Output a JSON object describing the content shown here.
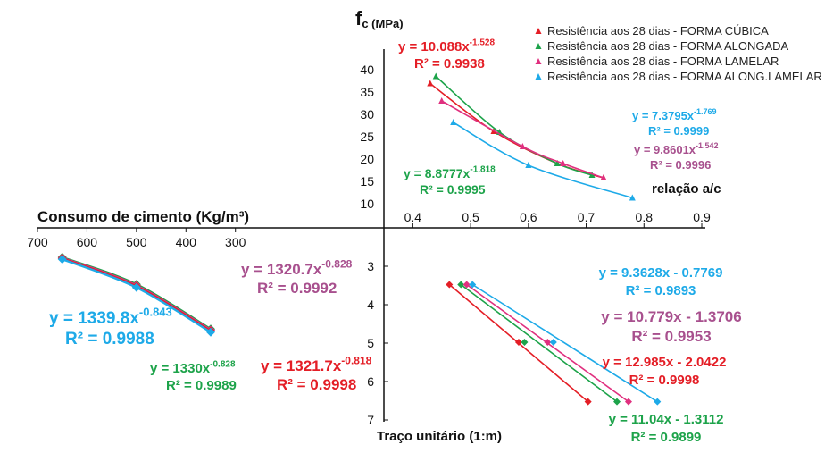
{
  "chart_data": {
    "type": "quadrant-scatter",
    "colors": {
      "cubica": "#e41e26",
      "alongada": "#1da34a",
      "lamelar": "#e0307f",
      "along_lamelar": "#1eaae8",
      "lamelar_equation": "#a8508e"
    },
    "legend": {
      "placement": "top-right",
      "entries": [
        {
          "label": "Resistência aos 28 dias - FORMA CÚBICA",
          "color_key": "cubica"
        },
        {
          "label": "Resistência aos 28 dias - FORMA ALONGADA",
          "color_key": "alongada"
        },
        {
          "label": "Resistência aos 28 dias - FORMA LAMELAR",
          "color_key": "lamelar"
        },
        {
          "label": "Resistência aos 28 dias - FORMA ALONG.LAMELAR",
          "color_key": "along_lamelar"
        }
      ]
    },
    "axes": {
      "fc_label": "f",
      "fc_sub": "c (MPa)",
      "ac_label": "relação a/c",
      "cement_label": "Consumo de cimento (Kg/m³)",
      "traco_label": "Traço unitário (1:m)",
      "fc_ticks": [
        "40",
        "35",
        "30",
        "25",
        "20",
        "15",
        "10"
      ],
      "ac_ticks": [
        "0.4",
        "0.5",
        "0.6",
        "0.7",
        "0.8",
        "0.9"
      ],
      "cement_ticks": [
        "700",
        "600",
        "500",
        "400",
        "300"
      ],
      "traco_ticks": [
        "3",
        "4",
        "5",
        "6",
        "7"
      ],
      "fc_range": [
        7,
        42
      ],
      "ac_range": [
        0.35,
        0.9
      ],
      "cement_range": [
        0,
        700
      ],
      "traco_range": [
        2.5,
        7
      ]
    },
    "quadrant_ac_fc": {
      "series": [
        {
          "color_key": "cubica",
          "marker": "triangle",
          "points": [
            [
              0.43,
              36.9
            ],
            [
              0.54,
              26.2
            ],
            [
              0.65,
              19.0
            ],
            [
              0.73,
              15.8
            ]
          ]
        },
        {
          "color_key": "alongada",
          "marker": "triangle",
          "points": [
            [
              0.44,
              38.5
            ],
            [
              0.55,
              26.0
            ],
            [
              0.65,
              19.0
            ],
            [
              0.71,
              16.4
            ]
          ]
        },
        {
          "color_key": "lamelar",
          "marker": "triangle",
          "points": [
            [
              0.45,
              33.0
            ],
            [
              0.59,
              22.8
            ],
            [
              0.66,
              19.0
            ],
            [
              0.73,
              15.8
            ]
          ]
        },
        {
          "color_key": "along_lamelar",
          "marker": "triangle",
          "points": [
            [
              0.47,
              28.2
            ],
            [
              0.6,
              18.6
            ],
            [
              0.78,
              11.3
            ]
          ]
        }
      ],
      "equations": [
        {
          "color_key": "cubica",
          "coef": "y = 10.088x",
          "exp": "-1.528",
          "r2": "R² = 0.9938"
        },
        {
          "color_key": "along_lamelar",
          "coef": "y = 7.3795x",
          "exp": "-1.769",
          "r2": "R² = 0.9999"
        },
        {
          "color_key": "lamelar_equation",
          "coef": "y = 9.8601x",
          "exp": "-1.542",
          "r2": "R² = 0.9996"
        },
        {
          "color_key": "alongada",
          "coef": "y = 8.8777x",
          "exp": "-1.818",
          "r2": "R² = 0.9995"
        }
      ]
    },
    "quadrant_cement_ac": {
      "series": [
        {
          "color_key": "alongada",
          "marker": "diamond",
          "points": [
            [
              650,
              0.433
            ],
            [
              500,
              0.553
            ],
            [
              350,
              0.728
            ]
          ]
        },
        {
          "color_key": "lamelar",
          "marker": "diamond",
          "points": [
            [
              650,
              0.433
            ],
            [
              500,
              0.552
            ],
            [
              350,
              0.728
            ]
          ]
        },
        {
          "color_key": "cubica",
          "marker": "diamond",
          "points": [
            [
              650,
              0.437
            ],
            [
              500,
              0.556
            ],
            [
              350,
              0.733
            ]
          ]
        },
        {
          "color_key": "along_lamelar",
          "marker": "diamond",
          "points": [
            [
              650,
              0.425
            ],
            [
              500,
              0.55
            ],
            [
              350,
              0.722
            ]
          ]
        }
      ],
      "equations": [
        {
          "color_key": "lamelar_equation",
          "coef": "y = 1320.7x",
          "exp": "-0.828",
          "r2": "R² = 0.9992"
        },
        {
          "color_key": "along_lamelar",
          "coef": "y = 1339.8x",
          "exp": "-0.843",
          "r2": "R² = 0.9988"
        },
        {
          "color_key": "alongada",
          "coef": "y = 1330x",
          "exp": "-0.828",
          "r2": "R² = 0.9989"
        },
        {
          "color_key": "cubica",
          "coef": "y = 1321.7x",
          "exp": "-0.818",
          "r2": "R² = 0.9998"
        }
      ]
    },
    "quadrant_ac_traco": {
      "series": [
        {
          "color_key": "cubica",
          "marker": "diamond",
          "points": [
            [
              0.42,
              3.5
            ],
            [
              0.54,
              5.0
            ],
            [
              0.66,
              6.55
            ]
          ]
        },
        {
          "color_key": "alongada",
          "marker": "diamond",
          "points": [
            [
              0.44,
              3.5
            ],
            [
              0.55,
              5.0
            ],
            [
              0.71,
              6.55
            ]
          ]
        },
        {
          "color_key": "lamelar",
          "marker": "diamond",
          "points": [
            [
              0.45,
              3.5
            ],
            [
              0.59,
              5.0
            ],
            [
              0.73,
              6.55
            ]
          ]
        },
        {
          "color_key": "along_lamelar",
          "marker": "diamond",
          "points": [
            [
              0.46,
              3.5
            ],
            [
              0.6,
              5.0
            ],
            [
              0.78,
              6.55
            ]
          ]
        }
      ],
      "equations": [
        {
          "color_key": "along_lamelar",
          "text": "y = 9.3628x - 0.7769",
          "r2": "R² = 0.9893"
        },
        {
          "color_key": "lamelar_equation",
          "text": "y = 10.779x - 1.3706",
          "r2": "R² = 0.9953"
        },
        {
          "color_key": "cubica",
          "text": "y = 12.985x - 2.0422",
          "r2": "R² = 0.9998"
        },
        {
          "color_key": "alongada",
          "text": "y = 11.04x - 1.3112",
          "r2": "R² = 0.9899"
        }
      ]
    }
  }
}
